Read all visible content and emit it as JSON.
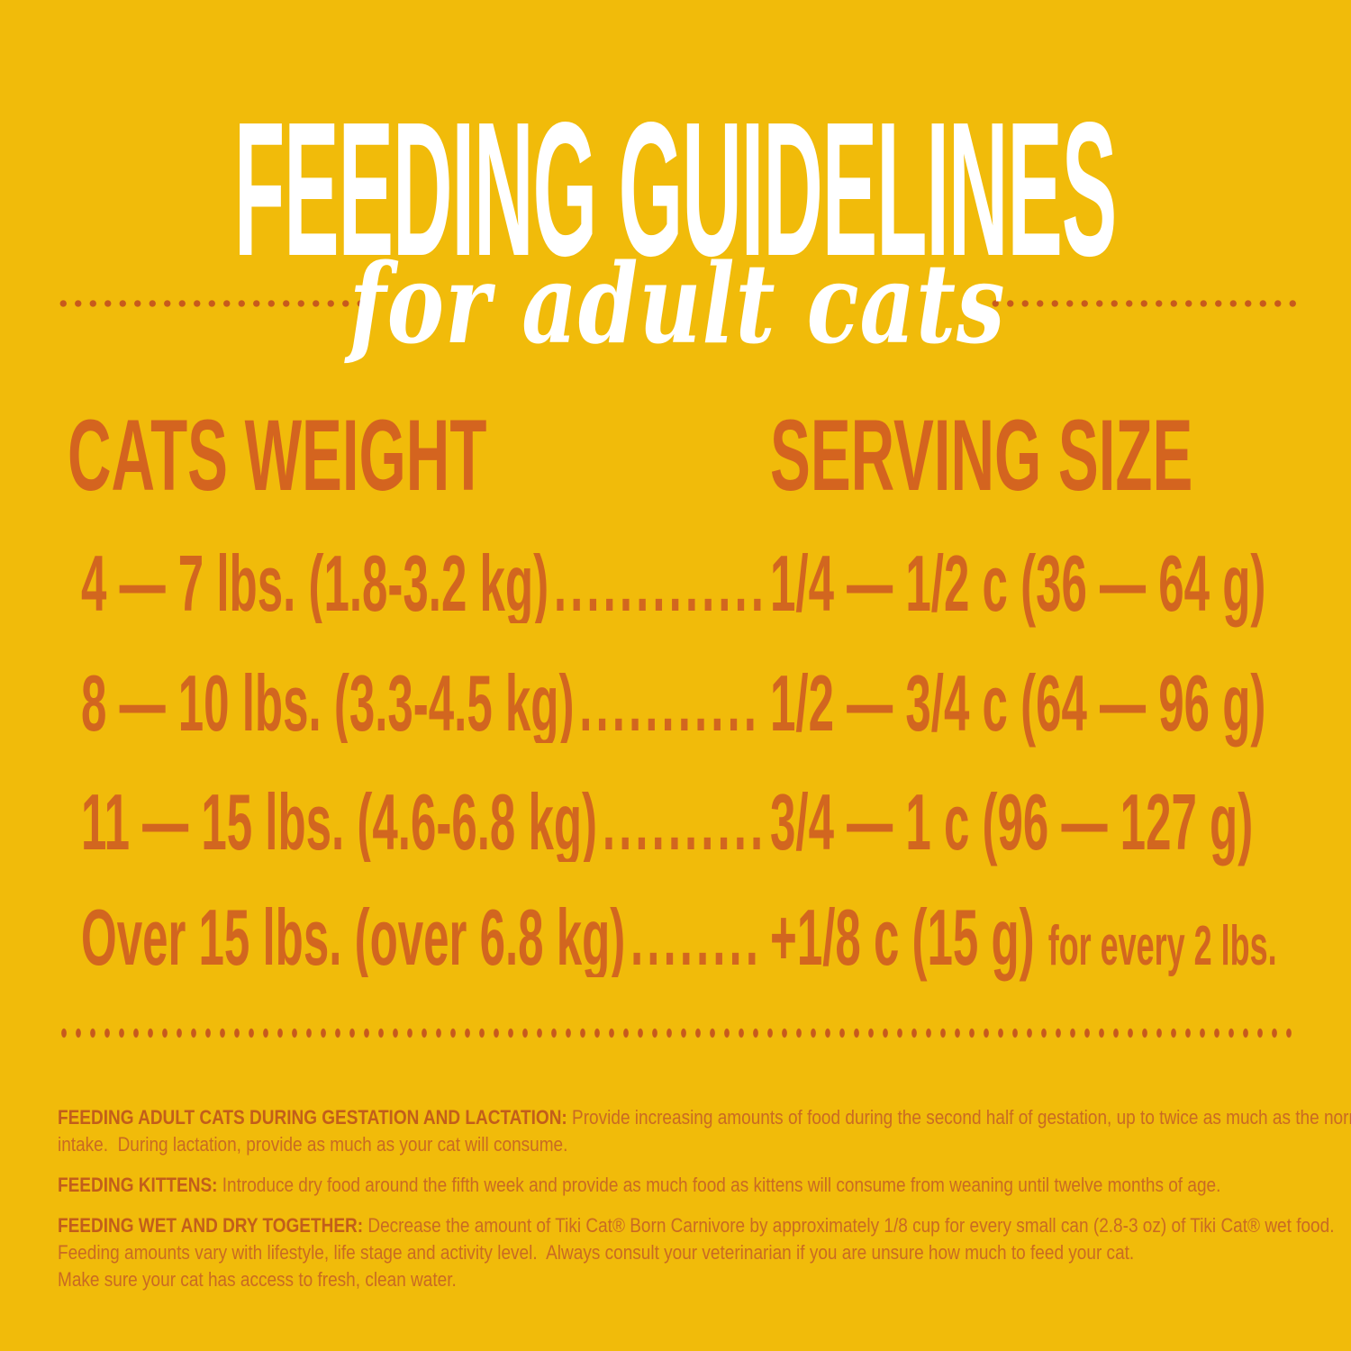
{
  "header": {
    "title": "FEEDING GUIDELINES",
    "subtitle": "for adult cats"
  },
  "colors": {
    "background": "#F1BB0A",
    "orange_text": "#D2661F",
    "title_white": "#FFFFFF",
    "dot_orange": "#C75A1D"
  },
  "table": {
    "col1_header": "CATS WEIGHT",
    "col2_header": "SERVING SIZE",
    "rows": [
      {
        "weight": "4 — 7 lbs. (1.8-3.2 kg)",
        "dots": "........................................",
        "serving": "1/4 — 1/2 c (36 — 64 g)",
        "suffix": ""
      },
      {
        "weight": "8 — 10 lbs. (3.3-4.5 kg)",
        "dots": "........................................",
        "serving": "1/2 — 3/4 c (64 — 96 g)",
        "suffix": ""
      },
      {
        "weight": "11 — 15 lbs. (4.6-6.8 kg)",
        "dots": "........................................",
        "serving": "3/4 — 1 c (96 — 127 g)",
        "suffix": ""
      },
      {
        "weight": "Over 15 lbs. (over 6.8 kg)",
        "dots": "........................................",
        "serving": "+1/8 c (15 g)",
        "suffix": "for every 2 lbs."
      }
    ]
  },
  "notes": [
    {
      "label": "FEEDING ADULT CATS DURING GESTATION AND LACTATION:",
      "lines": [
        "Provide increasing amounts of food during the second half of gestation, up to twice as much as the normal",
        "intake.  During lactation, provide as much as your cat will consume."
      ]
    },
    {
      "label": "FEEDING KITTENS:",
      "lines": [
        "Introduce dry food around the fifth week and provide as much food as kittens will consume from weaning until twelve months of age."
      ]
    },
    {
      "label": "FEEDING WET AND DRY TOGETHER:",
      "lines": [
        "Decrease the amount of Tiki Cat® Born Carnivore by approximately 1/8 cup for every small can (2.8-3 oz) of Tiki Cat® wet food.",
        "Feeding amounts vary with lifestyle, life stage and activity level.  Always consult your veterinarian if you are unsure how much to feed your cat.",
        "Make sure your cat has access to fresh, clean water."
      ]
    }
  ]
}
